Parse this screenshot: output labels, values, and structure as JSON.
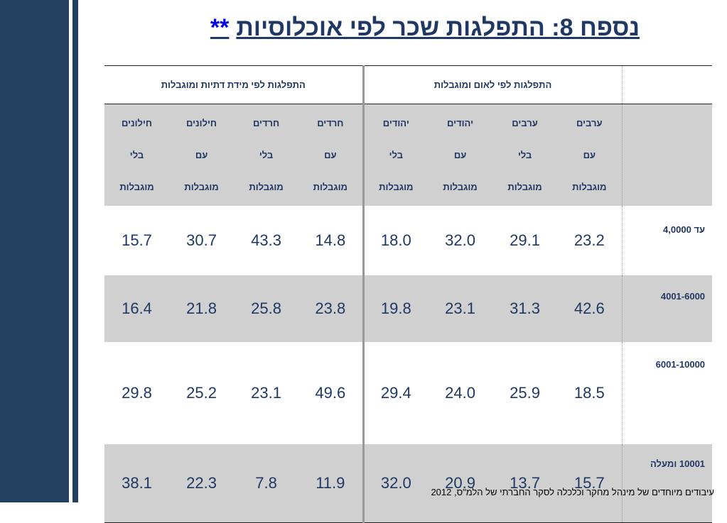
{
  "title": {
    "text": "נספח 8: התפלגות שכר לפי אוכלוסיות",
    "stars": "**"
  },
  "table": {
    "groups": {
      "nation": "התפלגות לפי לאום ומוגבלות",
      "religion": "התפלגות לפי מידת דתיות ומוגבלות"
    },
    "columns": [
      [
        "ערבים",
        "עם",
        "מוגבלות"
      ],
      [
        "ערבים",
        "בלי",
        "מוגבלות"
      ],
      [
        "יהודים",
        "עם",
        "מוגבלות"
      ],
      [
        "יהודים",
        "בלי",
        "מוגבלות"
      ],
      [
        "חרדים",
        "עם",
        "מוגבלות"
      ],
      [
        "חרדים",
        "בלי",
        "מוגבלות"
      ],
      [
        "חילונים",
        "עם",
        "מוגבלות"
      ],
      [
        "חילונים",
        "בלי",
        "מוגבלות"
      ]
    ],
    "rows": [
      {
        "label": "עד 4,0000",
        "values": [
          "23.2",
          "29.1",
          "32.0",
          "18.0",
          "14.8",
          "43.3",
          "30.7",
          "15.7"
        ]
      },
      {
        "label": "4001-6000",
        "values": [
          "42.6",
          "31.3",
          "23.1",
          "19.8",
          "23.8",
          "25.8",
          "21.8",
          "16.4"
        ]
      },
      {
        "label": "6001-10000",
        "values": [
          "18.5",
          "25.9",
          "24.0",
          "29.4",
          "49.6",
          "23.1",
          "25.2",
          "29.8"
        ]
      },
      {
        "label": "10001 ומעלה",
        "values": [
          "15.7",
          "13.7",
          "20.9",
          "32.0",
          "11.9",
          "7.8",
          "22.3",
          "38.1"
        ]
      }
    ]
  },
  "footer": "עיבודים מיוחדים של מינהל מחקר וכלכלה  לסקר החברתי של הלמ\"ס,  2012"
}
